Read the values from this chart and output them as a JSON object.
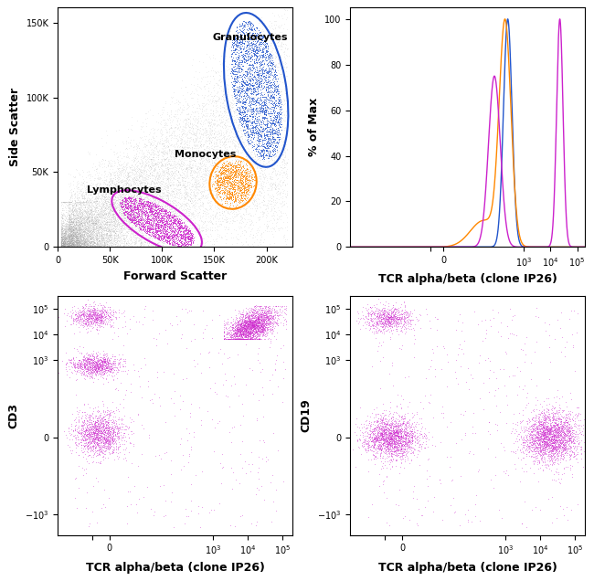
{
  "figure_bg": "#ffffff",
  "panel_bg": "#ffffff",
  "scatter_dot_color": "#999999",
  "granulocyte_color": "#2255cc",
  "monocyte_color": "#ff8800",
  "lymphocyte_color": "#cc22cc",
  "magenta_color": "#cc22cc",
  "blue_color": "#2255cc",
  "orange_color": "#ff8800",
  "panel1_xlabel": "Forward Scatter",
  "panel1_ylabel": "Side Scatter",
  "panel2_xlabel": "TCR alpha/beta (clone IP26)",
  "panel2_ylabel": "% of Max",
  "panel3_xlabel": "TCR alpha/beta (clone IP26)",
  "panel3_ylabel": "CD3",
  "panel4_xlabel": "TCR alpha/beta (clone IP26)",
  "panel4_ylabel": "CD19",
  "label_granulocytes": "Granulocytes",
  "label_monocytes": "Monocytes",
  "label_lymphocytes": "Lymphocytes"
}
